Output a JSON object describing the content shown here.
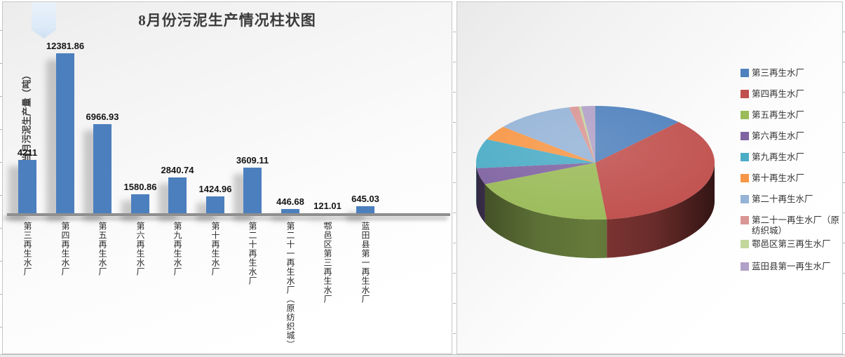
{
  "chart_data": [
    {
      "type": "bar",
      "title": "8月份污泥生产情况柱状图",
      "xlabel": "",
      "ylabel": "当月污泥生产量（吨）",
      "categories": [
        "第三再生水厂",
        "第四再生水厂",
        "第五再生水厂",
        "第六再生水厂",
        "第九再生水厂",
        "第十再生水厂",
        "第二十再生水厂",
        "第二十一再生水厂（原纺织城）",
        "鄠邑区第三再生水厂",
        "蓝田县第一再生水厂"
      ],
      "values": [
        4211,
        12381.86,
        6966.93,
        1580.86,
        2840.74,
        1424.96,
        3609.11,
        446.68,
        121.01,
        645.03
      ],
      "data_labels": [
        "4211",
        "12381.86",
        "6966.93",
        "1580.86",
        "2840.74",
        "1424.96",
        "3609.11",
        "446.68",
        "121.01",
        "645.03"
      ],
      "bar_color": "#4C7FBE",
      "ylim": [
        0,
        13000
      ],
      "grid": false,
      "legend_position": "none",
      "data_labels_shown": true
    },
    {
      "type": "pie",
      "style": "3d",
      "categories": [
        "第三再生水厂",
        "第四再生水厂",
        "第五再生水厂",
        "第六再生水厂",
        "第九再生水厂",
        "第十再生水厂",
        "第二十再生水厂",
        "第二十一再生水厂（原纺织城）",
        "鄠邑区第三再生水厂",
        "蓝田县第一再生水厂"
      ],
      "values": [
        4211,
        12381.86,
        6966.93,
        1580.86,
        2840.74,
        1424.96,
        3609.11,
        446.68,
        121.01,
        645.03
      ],
      "colors": [
        "#4F81BD",
        "#C0504D",
        "#9BBB59",
        "#8064A2",
        "#4BACC6",
        "#F79646",
        "#95B3D7",
        "#D99694",
        "#C3D69B",
        "#B1A0C7"
      ],
      "legend_position": "right",
      "start_angle_deg": 0,
      "clockwise": true
    }
  ]
}
